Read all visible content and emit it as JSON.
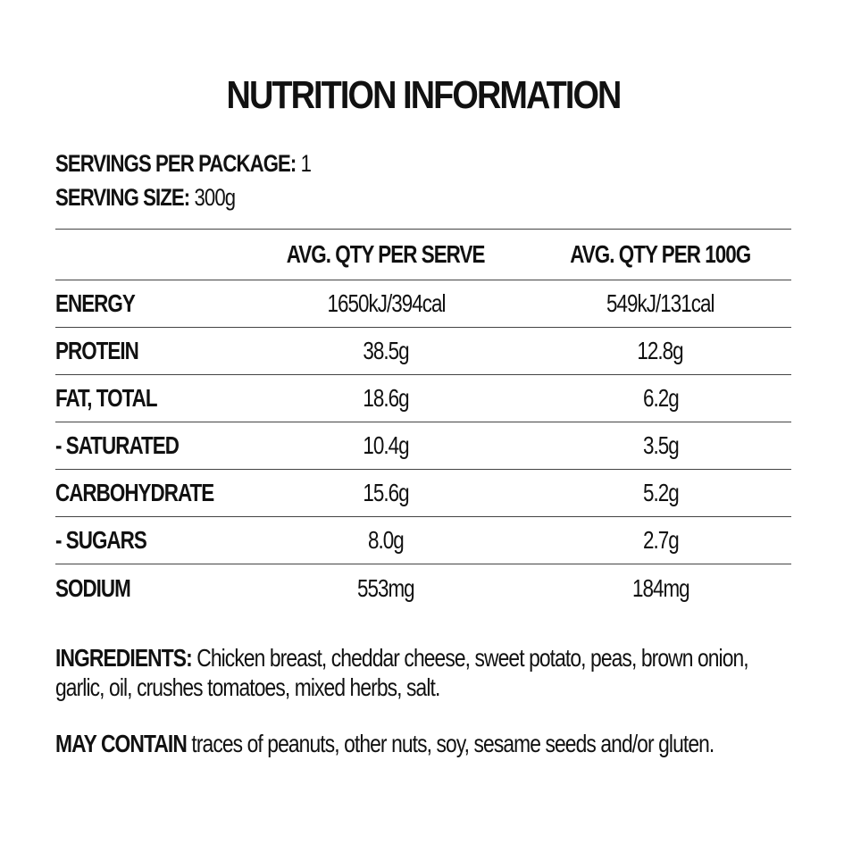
{
  "title": "NUTRITION INFORMATION",
  "servings": {
    "per_package_label": "SERVINGS PER PACKAGE:",
    "per_package_value": "1",
    "size_label": "SERVING SIZE:",
    "size_value": "300g"
  },
  "table": {
    "headers": [
      "",
      "AVG. QTY PER SERVE",
      "AVG. QTY PER 100G"
    ],
    "rows": [
      {
        "label": "ENERGY",
        "per_serve": "1650kJ/394cal",
        "per_100g": "549kJ/131cal"
      },
      {
        "label": "PROTEIN",
        "per_serve": "38.5g",
        "per_100g": "12.8g"
      },
      {
        "label": "FAT, TOTAL",
        "per_serve": "18.6g",
        "per_100g": "6.2g"
      },
      {
        "label": "- SATURATED",
        "per_serve": "10.4g",
        "per_100g": "3.5g"
      },
      {
        "label": "CARBOHYDRATE",
        "per_serve": "15.6g",
        "per_100g": "5.2g"
      },
      {
        "label": "- SUGARS",
        "per_serve": "8.0g",
        "per_100g": "2.7g"
      },
      {
        "label": "SODIUM",
        "per_serve": "553mg",
        "per_100g": "184mg"
      }
    ]
  },
  "ingredients": {
    "label": "INGREDIENTS:",
    "text": "Chicken breast, cheddar cheese, sweet potato, peas, brown onion, garlic, oil, crushes tomatoes, mixed herbs, salt."
  },
  "may_contain": {
    "label": "MAY CONTAIN",
    "text": "traces of peanuts, other nuts, soy, sesame seeds and/or gluten."
  },
  "colors": {
    "text": "#111111",
    "rule": "#444444",
    "background": "#ffffff"
  }
}
